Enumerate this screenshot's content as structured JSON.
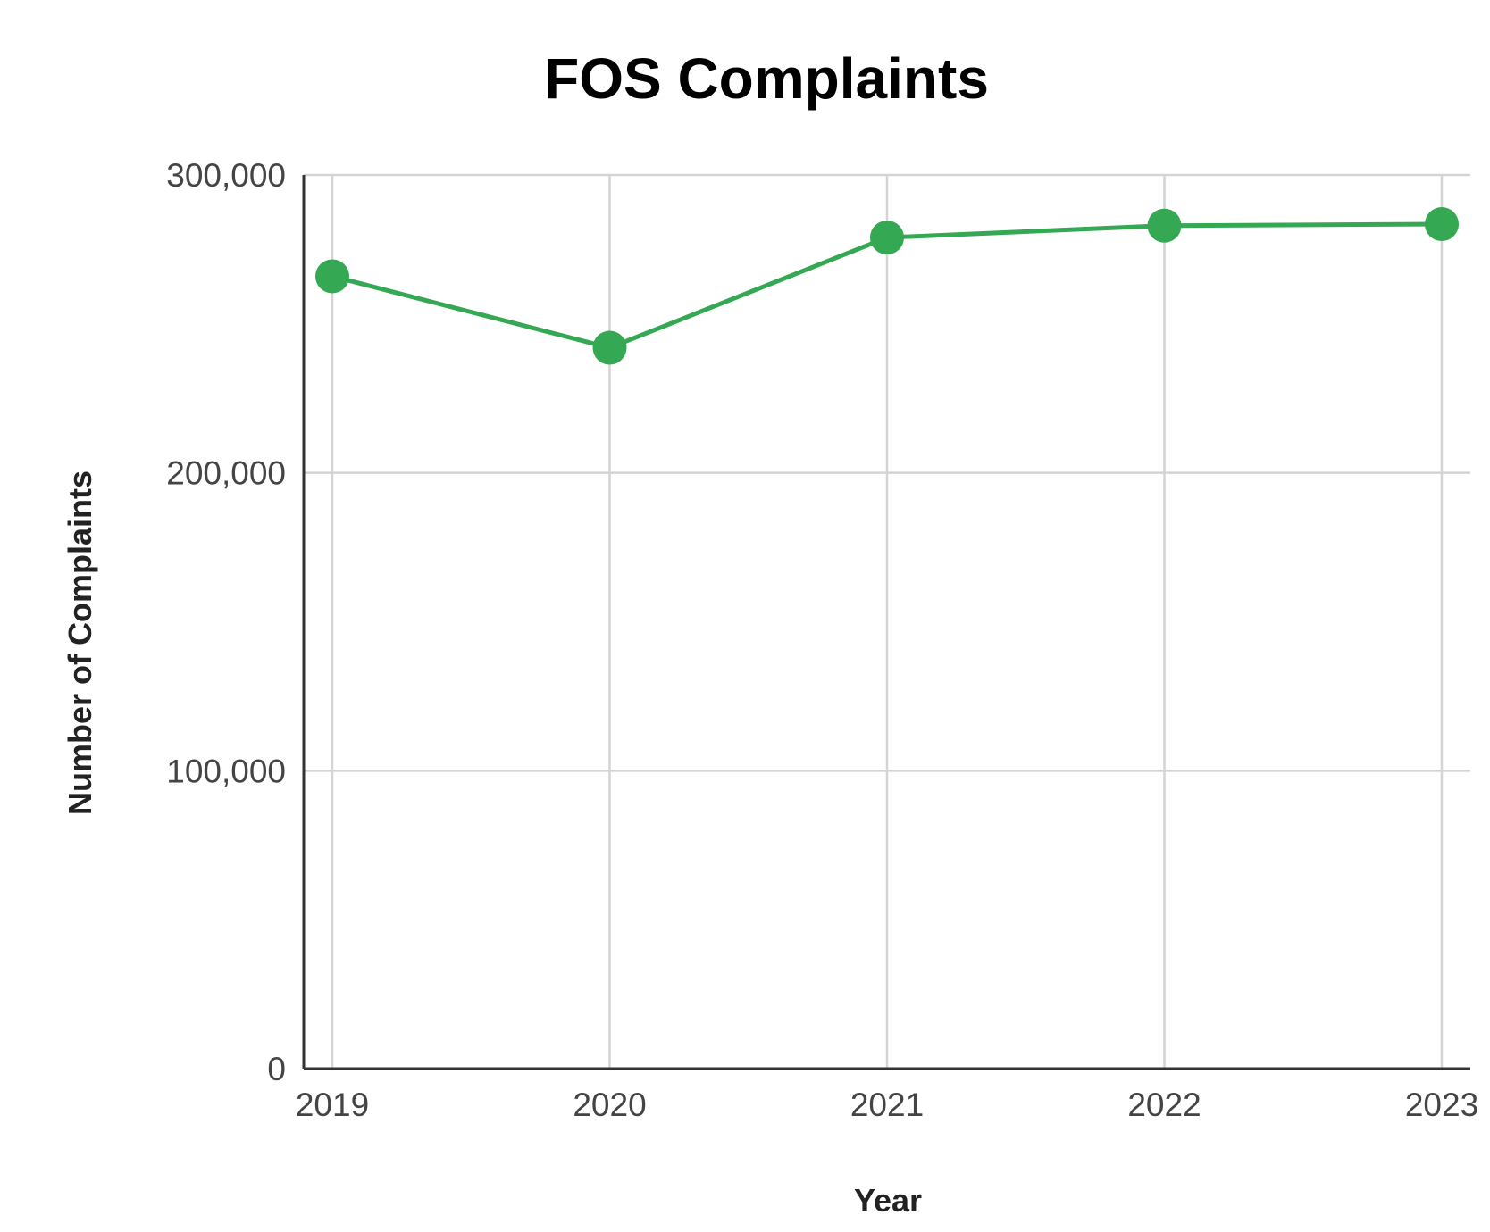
{
  "chart_data": {
    "type": "line",
    "title": "FOS Complaints",
    "xlabel": "Year",
    "ylabel": "Number of Complaints",
    "categories": [
      "2019",
      "2020",
      "2021",
      "2022",
      "2023"
    ],
    "series": [
      {
        "values": [
          266000,
          242000,
          279000,
          283000,
          283500
        ],
        "color": "#34a853"
      }
    ],
    "ylim": [
      0,
      300000
    ],
    "yticks": [
      0,
      100000,
      200000,
      300000
    ],
    "ytick_labels": [
      "0",
      "100,000",
      "200,000",
      "300,000"
    ],
    "grid": true,
    "legend": "none",
    "markers": true
  }
}
